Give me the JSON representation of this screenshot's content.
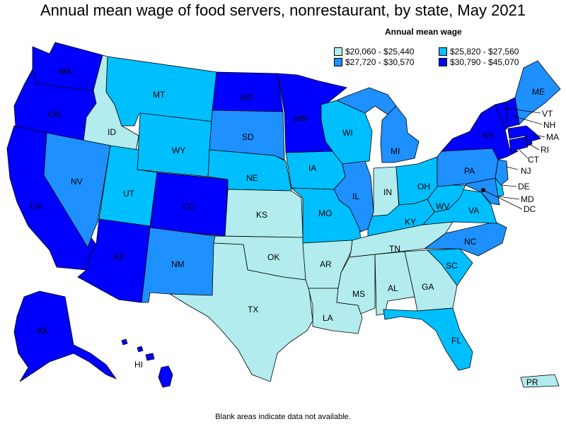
{
  "title": "Annual mean wage of food servers, nonrestaurant, by state, May 2021",
  "legend": {
    "title": "Annual mean wage",
    "items": [
      {
        "label": "$20,060 - $25,440",
        "color": "#b2ecee"
      },
      {
        "label": "$25,820 - $27,560",
        "color": "#00bfff"
      },
      {
        "label": "$27,720 - $30,570",
        "color": "#1e90ff"
      },
      {
        "label": "$30,790 - $45,070",
        "color": "#0000ff"
      }
    ]
  },
  "footnote": "Blank areas indicate data not available.",
  "states": {
    "WA": "WA",
    "OR": "OR",
    "CA": "CA",
    "AK": "AK",
    "HI": "HI",
    "ID": "ID",
    "NV": "NV",
    "MT": "MT",
    "WY": "WY",
    "UT": "UT",
    "AZ": "AZ",
    "CO": "CO",
    "NM": "NM",
    "ND": "ND",
    "SD": "SD",
    "NE": "NE",
    "KS": "KS",
    "OK": "OK",
    "TX": "TX",
    "MN": "MN",
    "IA": "IA",
    "MO": "MO",
    "AR": "AR",
    "LA": "LA",
    "WI": "WI",
    "IL": "IL",
    "MS": "MS",
    "MI": "MI",
    "IN": "IN",
    "KY": "KY",
    "TN": "TN",
    "AL": "AL",
    "OH": "OH",
    "GA": "GA",
    "FL": "FL",
    "WV": "WV",
    "VA": "VA",
    "NC": "NC",
    "SC": "SC",
    "PA": "PA",
    "NY": "NY",
    "ME": "ME",
    "VT": "VT",
    "NH": "NH",
    "MA": "MA",
    "RI": "RI",
    "CT": "CT",
    "NJ": "NJ",
    "DE": "DE",
    "MD": "MD",
    "DC": "DC",
    "PR": "PR"
  }
}
